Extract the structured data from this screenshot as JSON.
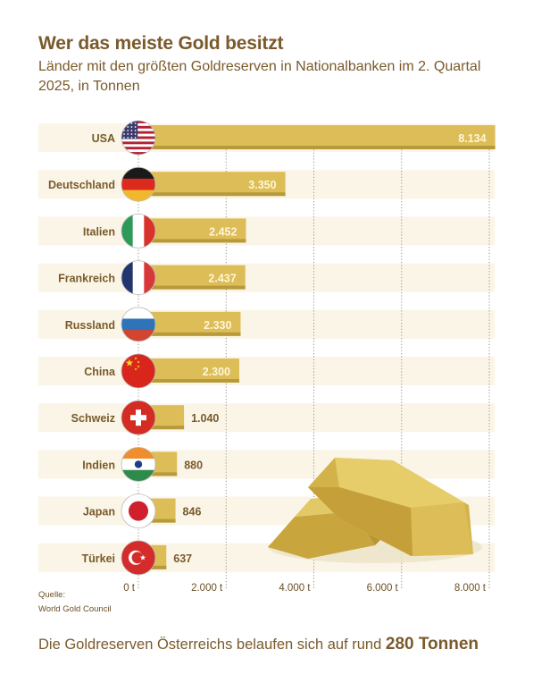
{
  "header": {
    "title": "Wer das meiste Gold besitzt",
    "subtitle": "Länder mit den größten Goldreserven in Nationalbanken im 2. Quartal 2025, in Tonnen"
  },
  "colors": {
    "bar": "#dcbd57",
    "bar_shadow": "#b99a3a",
    "row_band": "#faf5e6",
    "label": "#7a5a2b",
    "value_inside": "#fff6d8",
    "grid": "#9a8f80"
  },
  "chart_data": {
    "type": "bar",
    "orientation": "horizontal",
    "title": "Wer das meiste Gold besitzt",
    "subtitle": "Länder mit den größten Goldreserven in Nationalbanken im 2. Quartal 2025, in Tonnen",
    "categories": [
      "USA",
      "Deutschland",
      "Italien",
      "Frankreich",
      "Russland",
      "China",
      "Schweiz",
      "Indien",
      "Japan",
      "Türkei"
    ],
    "values": [
      8134,
      3350,
      2452,
      2437,
      2330,
      2300,
      1040,
      880,
      846,
      637
    ],
    "value_labels": [
      "8.134",
      "3.350",
      "2.452",
      "2.437",
      "2.330",
      "2.300",
      "1.040",
      "880",
      "846",
      "637"
    ],
    "flags": [
      "usa-flag",
      "germany-flag",
      "italy-flag",
      "france-flag",
      "russia-flag",
      "china-flag",
      "switzerland-flag",
      "india-flag",
      "japan-flag",
      "turkey-flag"
    ],
    "xlabel": "",
    "ylabel": "",
    "xlim": [
      0,
      8134
    ],
    "xticks": [
      0,
      2000,
      4000,
      6000,
      8000
    ],
    "xtick_labels": [
      "0 t",
      "2.000 t",
      "4.000 t",
      "6.000 t",
      "8.000 t"
    ],
    "grid": true,
    "legend": "none"
  },
  "source": {
    "label": "Quelle:",
    "name": "World Gold Council"
  },
  "footer": {
    "text": "Die Goldreserven Österreichs belaufen sich auf rund ",
    "highlight": "280 Tonnen"
  }
}
